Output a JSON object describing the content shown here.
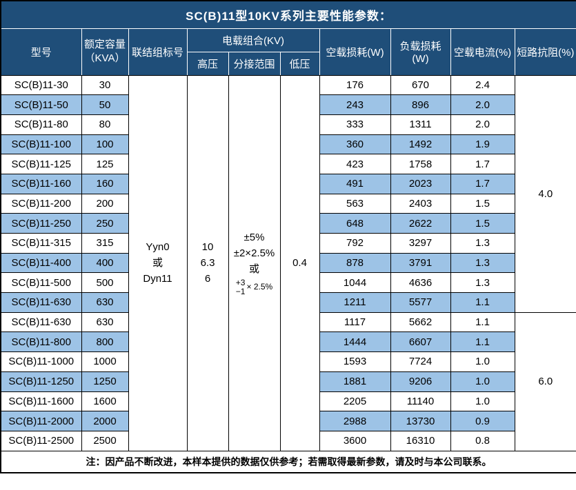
{
  "title": "SC(B)11型10KV系列主要性能参数：",
  "colors": {
    "header_bg": "#1F4E79",
    "header_text": "#FFFFFF",
    "alt_row_bg": "#9DC3E6",
    "row_bg": "#FFFFFF",
    "border": "#000000"
  },
  "header": {
    "model": "型号",
    "capacity_line1": "额定容量",
    "capacity_line2": "（KVA）",
    "connection": "联结组标号",
    "voltage_group": "电载组合(KV)",
    "hv": "高压",
    "tap_range": "分接范围",
    "lv": "低压",
    "no_load_loss": "空载损耗(W)",
    "load_loss": "负载损耗(W)",
    "no_load_current": "空载电流(%)",
    "impedance": "短路抗阻(%)"
  },
  "merged": {
    "connection_lines": [
      "Yyn0",
      "或",
      "Dyn11"
    ],
    "hv_lines": [
      "10",
      "6.3",
      "6"
    ],
    "tap_lines": [
      "±5%",
      "±2×2.5%",
      "或"
    ],
    "tap_fraction": {
      "top": "+3",
      "bottom": "−1",
      "suffix": "× 2.5%"
    },
    "lv": "0.4",
    "impedance_groups": [
      {
        "value": "4.0",
        "rows": 12
      },
      {
        "value": "6.0",
        "rows": 7
      }
    ]
  },
  "rows": [
    {
      "model": "SC(B)11-30",
      "kva": "30",
      "no_load_loss": "176",
      "load_loss": "670",
      "no_load_current": "2.4"
    },
    {
      "model": "SC(B)11-50",
      "kva": "50",
      "no_load_loss": "243",
      "load_loss": "896",
      "no_load_current": "2.0"
    },
    {
      "model": "SC(B)11-80",
      "kva": "80",
      "no_load_loss": "333",
      "load_loss": "1311",
      "no_load_current": "2.0"
    },
    {
      "model": "SC(B)11-100",
      "kva": "100",
      "no_load_loss": "360",
      "load_loss": "1492",
      "no_load_current": "1.9"
    },
    {
      "model": "SC(B)11-125",
      "kva": "125",
      "no_load_loss": "423",
      "load_loss": "1758",
      "no_load_current": "1.7"
    },
    {
      "model": "SC(B)11-160",
      "kva": "160",
      "no_load_loss": "491",
      "load_loss": "2023",
      "no_load_current": "1.7"
    },
    {
      "model": "SC(B)11-200",
      "kva": "200",
      "no_load_loss": "563",
      "load_loss": "2403",
      "no_load_current": "1.5"
    },
    {
      "model": "SC(B)11-250",
      "kva": "250",
      "no_load_loss": "648",
      "load_loss": "2622",
      "no_load_current": "1.5"
    },
    {
      "model": "SC(B)11-315",
      "kva": "315",
      "no_load_loss": "792",
      "load_loss": "3297",
      "no_load_current": "1.3"
    },
    {
      "model": "SC(B)11-400",
      "kva": "400",
      "no_load_loss": "878",
      "load_loss": "3791",
      "no_load_current": "1.3"
    },
    {
      "model": "SC(B)11-500",
      "kva": "500",
      "no_load_loss": "1044",
      "load_loss": "4636",
      "no_load_current": "1.3"
    },
    {
      "model": "SC(B)11-630",
      "kva": "630",
      "no_load_loss": "1211",
      "load_loss": "5577",
      "no_load_current": "1.1"
    },
    {
      "model": "SC(B)11-630",
      "kva": "630",
      "no_load_loss": "1117",
      "load_loss": "5662",
      "no_load_current": "1.1"
    },
    {
      "model": "SC(B)11-800",
      "kva": "800",
      "no_load_loss": "1444",
      "load_loss": "6607",
      "no_load_current": "1.1"
    },
    {
      "model": "SC(B)11-1000",
      "kva": "1000",
      "no_load_loss": "1593",
      "load_loss": "7724",
      "no_load_current": "1.0"
    },
    {
      "model": "SC(B)11-1250",
      "kva": "1250",
      "no_load_loss": "1881",
      "load_loss": "9206",
      "no_load_current": "1.0"
    },
    {
      "model": "SC(B)11-1600",
      "kva": "1600",
      "no_load_loss": "2205",
      "load_loss": "11140",
      "no_load_current": "1.0"
    },
    {
      "model": "SC(B)11-2000",
      "kva": "2000",
      "no_load_loss": "2988",
      "load_loss": "13730",
      "no_load_current": "0.9"
    },
    {
      "model": "SC(B)11-2500",
      "kva": "2500",
      "no_load_loss": "3600",
      "load_loss": "16310",
      "no_load_current": "0.8"
    }
  ],
  "footer": "注：因产品不断改进，本样本提供的数据仅供参考；若需取得最新参数，请及时与本公司联系。"
}
